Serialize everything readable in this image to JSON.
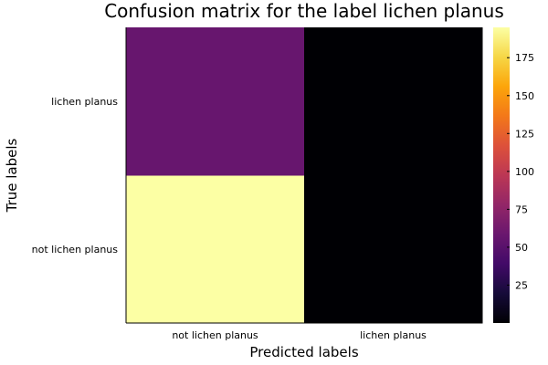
{
  "chart_data": {
    "type": "heatmap",
    "title": "Confusion matrix for the label lichen planus",
    "xlabel": "Predicted labels",
    "ylabel": "True labels",
    "x_categories": [
      "not lichen planus",
      "lichen planus"
    ],
    "y_categories": [
      "not lichen planus",
      "lichen planus"
    ],
    "matrix": [
      [
        195,
        0
      ],
      [
        57,
        0
      ]
    ],
    "colormap": "inferno",
    "color_range": [
      0,
      195
    ],
    "colorbar_ticks": [
      25,
      50,
      75,
      100,
      125,
      150,
      175
    ],
    "grid": false
  }
}
